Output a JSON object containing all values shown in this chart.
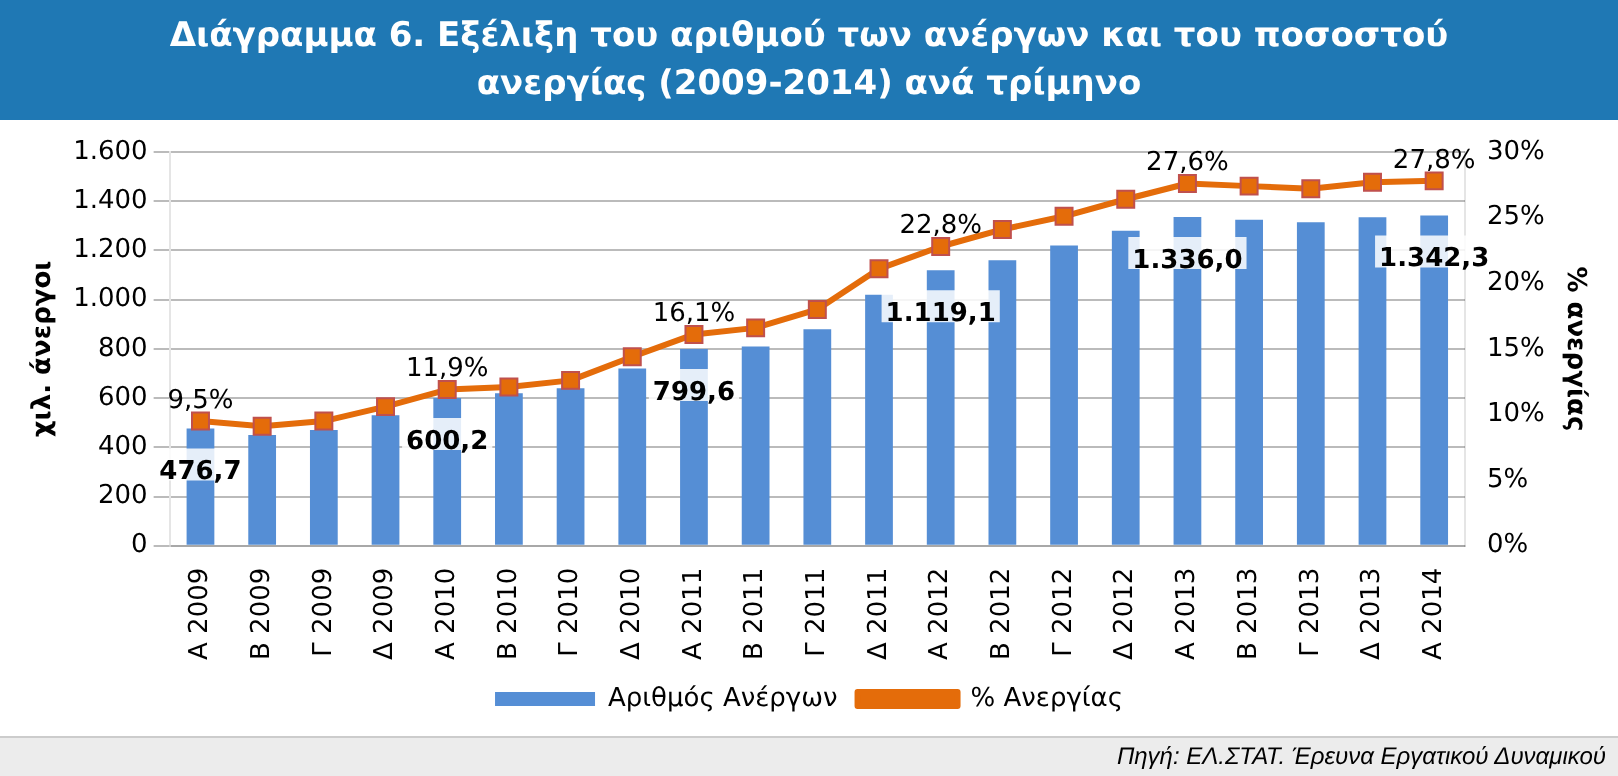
{
  "chart_data": {
    "type": "bar",
    "title": "Διάγραμμα 6.  Εξέλιξη του αριθμού των ανέργων και του ποσοστού ανεργίας (2009-2014) ανά τρίμηνο",
    "categories": [
      "Α 2009",
      "Β 2009",
      "Γ 2009",
      "Δ 2009",
      "Α 2010",
      "Β 2010",
      "Γ 2010",
      "Δ 2010",
      "Α 2011",
      "Β 2011",
      "Γ 2011",
      "Δ 2011",
      "Α 2012",
      "Β 2012",
      "Γ 2012",
      "Δ 2012",
      "Α 2013",
      "Β 2013",
      "Γ 2013",
      "Δ 2013",
      "Α 2014"
    ],
    "series": [
      {
        "name": "Αριθμός Ανέργων",
        "color": "#558ed5",
        "values": [
          476.7,
          450,
          470,
          530,
          600.2,
          620,
          640,
          720,
          799.6,
          810,
          880,
          1020,
          1119.1,
          1160,
          1220,
          1280,
          1336.0,
          1325,
          1315,
          1335,
          1342.3
        ],
        "value_labels": [
          "476,7",
          null,
          null,
          null,
          "600,2",
          null,
          null,
          null,
          "799,6",
          null,
          null,
          null,
          "1.119,1",
          null,
          null,
          null,
          "1.336,0",
          null,
          null,
          null,
          "1.342,3"
        ]
      },
      {
        "name": "% Ανεργίας",
        "type": "line",
        "axis": "y2",
        "color": "#e46c0a",
        "values": [
          9.5,
          9.1,
          9.5,
          10.6,
          11.9,
          12.1,
          12.6,
          14.4,
          16.1,
          16.6,
          18.0,
          21.1,
          22.8,
          24.1,
          25.1,
          26.4,
          27.6,
          27.4,
          27.2,
          27.7,
          27.8
        ],
        "value_labels": [
          "9,5%",
          null,
          null,
          null,
          "11,9%",
          null,
          null,
          null,
          "16,1%",
          null,
          null,
          null,
          "22,8%",
          null,
          null,
          null,
          "27,6%",
          null,
          null,
          null,
          "27,8%"
        ]
      }
    ],
    "ylabel": "χιλ. άνεργοι",
    "y2label": "% ανεργίας",
    "ylim": [
      0,
      1600
    ],
    "yticks": [
      0,
      200,
      400,
      600,
      800,
      {
        "value": 1000,
        "label": "1.000"
      },
      {
        "value": 1200,
        "label": "1.200"
      },
      {
        "value": 1400,
        "label": "1.400"
      },
      {
        "value": 1600,
        "label": "1.600"
      }
    ],
    "y2lim": [
      0,
      30
    ],
    "y2ticks": [
      {
        "value": 0,
        "label": "0%"
      },
      {
        "value": 5,
        "label": "5%"
      },
      {
        "value": 10,
        "label": "10%"
      },
      {
        "value": 15,
        "label": "15%"
      },
      {
        "value": 20,
        "label": "20%"
      },
      {
        "value": 25,
        "label": "25%"
      },
      {
        "value": 30,
        "label": "30%"
      }
    ],
    "grid": "y",
    "legend": "bottom",
    "marker": "square",
    "annotations": [
      "Πηγή: ΕΛ.ΣΤΑΤ. Έρευνα Εργατικού Δυναμικού"
    ]
  }
}
